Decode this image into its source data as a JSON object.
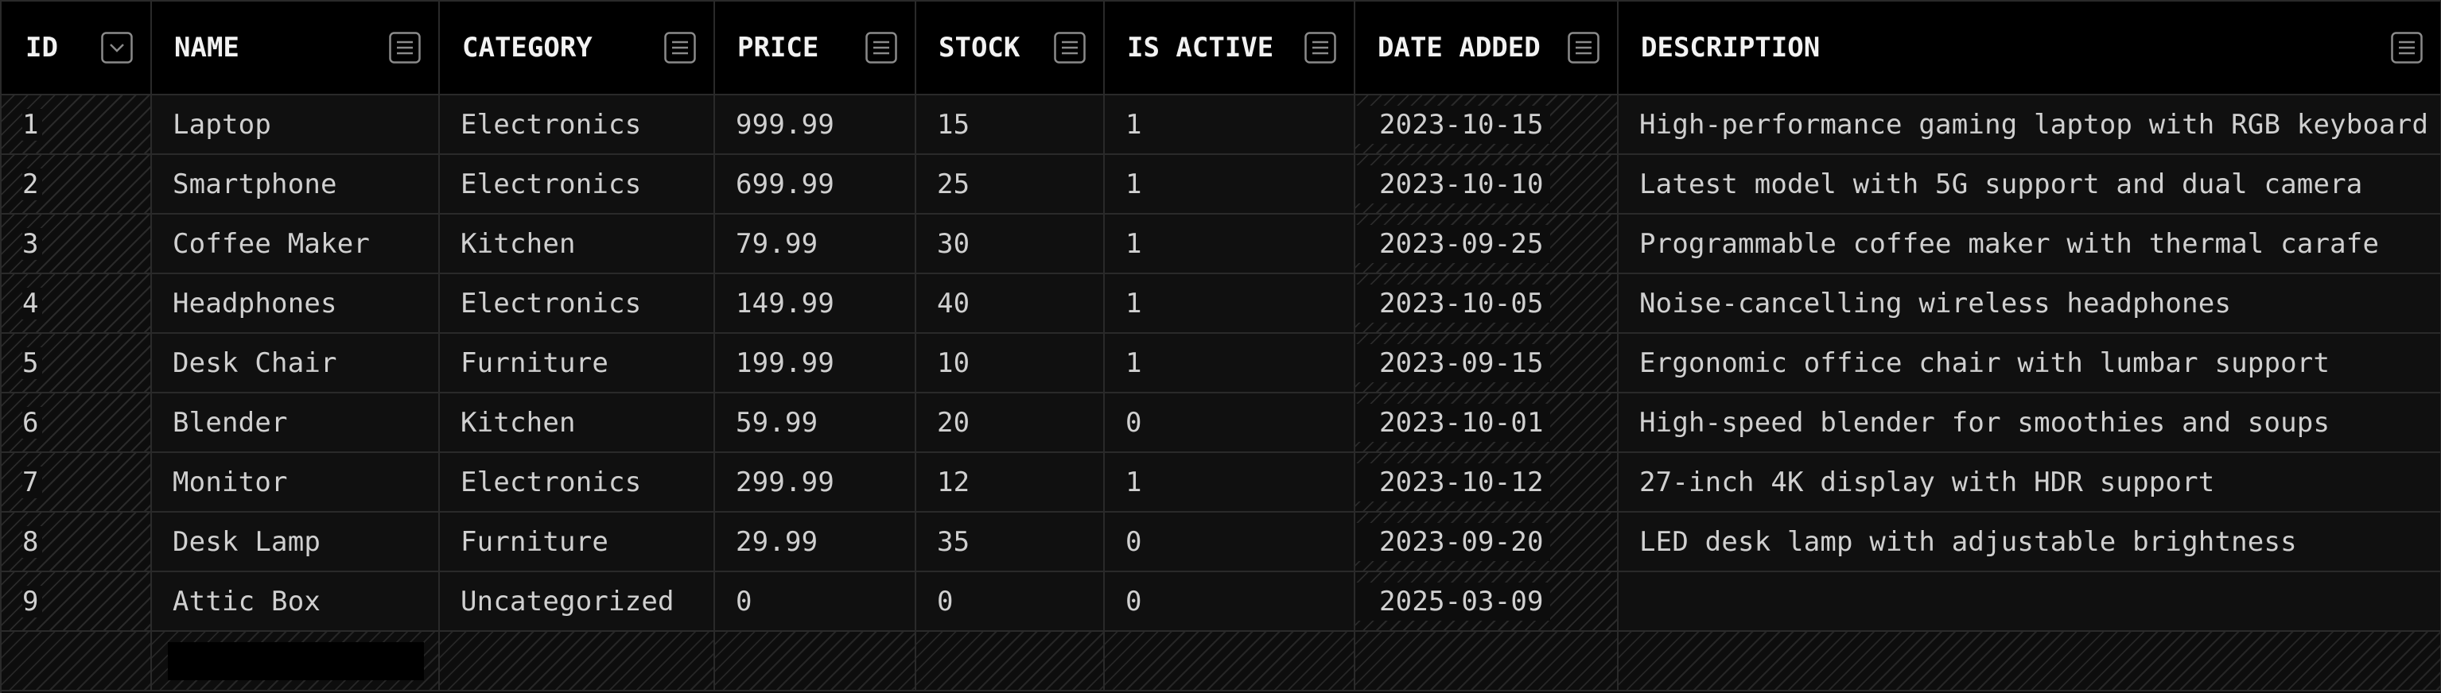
{
  "columns": [
    {
      "label": "ID",
      "icon": "chevron-down-icon"
    },
    {
      "label": "NAME",
      "icon": "column-menu-icon"
    },
    {
      "label": "CATEGORY",
      "icon": "column-menu-icon"
    },
    {
      "label": "PRICE",
      "icon": "column-menu-icon"
    },
    {
      "label": "STOCK",
      "icon": "column-menu-icon"
    },
    {
      "label": "IS ACTIVE",
      "icon": "column-menu-icon"
    },
    {
      "label": "DATE ADDED",
      "icon": "column-menu-icon"
    },
    {
      "label": "DESCRIPTION",
      "icon": "column-menu-icon"
    }
  ],
  "rows": [
    {
      "id": "1",
      "name": "Laptop",
      "category": "Electronics",
      "price": "999.99",
      "stock": "15",
      "is_active": "1",
      "date_added": "2023-10-15",
      "description": "High-performance gaming laptop with RGB keyboard"
    },
    {
      "id": "2",
      "name": "Smartphone",
      "category": "Electronics",
      "price": "699.99",
      "stock": "25",
      "is_active": "1",
      "date_added": "2023-10-10",
      "description": "Latest model with 5G support and dual camera"
    },
    {
      "id": "3",
      "name": "Coffee Maker",
      "category": "Kitchen",
      "price": "79.99",
      "stock": "30",
      "is_active": "1",
      "date_added": "2023-09-25",
      "description": "Programmable coffee maker with thermal carafe"
    },
    {
      "id": "4",
      "name": "Headphones",
      "category": "Electronics",
      "price": "149.99",
      "stock": "40",
      "is_active": "1",
      "date_added": "2023-10-05",
      "description": "Noise-cancelling wireless headphones"
    },
    {
      "id": "5",
      "name": "Desk Chair",
      "category": "Furniture",
      "price": "199.99",
      "stock": "10",
      "is_active": "1",
      "date_added": "2023-09-15",
      "description": "Ergonomic office chair with lumbar support"
    },
    {
      "id": "6",
      "name": "Blender",
      "category": "Kitchen",
      "price": "59.99",
      "stock": "20",
      "is_active": "0",
      "date_added": "2023-10-01",
      "description": "High-speed blender for smoothies and soups"
    },
    {
      "id": "7",
      "name": "Monitor",
      "category": "Electronics",
      "price": "299.99",
      "stock": "12",
      "is_active": "1",
      "date_added": "2023-10-12",
      "description": "27-inch 4K display with HDR support"
    },
    {
      "id": "8",
      "name": "Desk Lamp",
      "category": "Furniture",
      "price": "29.99",
      "stock": "35",
      "is_active": "0",
      "date_added": "2023-09-20",
      "description": "LED desk lamp with adjustable brightness"
    },
    {
      "id": "9",
      "name": "Attic Box",
      "category": "Uncategorized",
      "price": "0",
      "stock": "0",
      "is_active": "0",
      "date_added": "2025-03-09",
      "description": ""
    }
  ],
  "new_row": {
    "name_value": ""
  },
  "colors": {
    "background": "#0b0b0b",
    "header_bg": "#000000",
    "grid_line": "#2a2a2a",
    "text": "#d0d0d0"
  }
}
